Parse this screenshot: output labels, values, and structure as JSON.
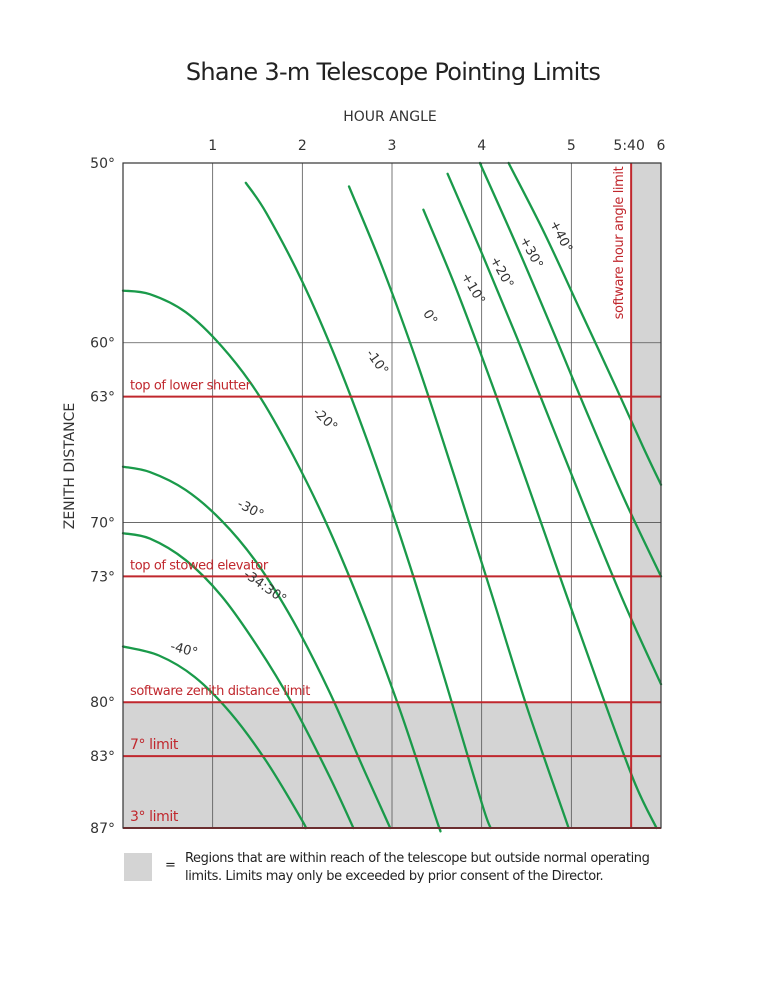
{
  "chart_data": {
    "type": "line",
    "title": "Shane 3-m Telescope Pointing Limits",
    "xlabel": "HOUR ANGLE",
    "ylabel": "ZENITH DISTANCE",
    "xlim": [
      0,
      6
    ],
    "ylim": [
      50,
      87
    ],
    "y_reversed": true,
    "grid": true,
    "x_ticks": [
      {
        "value": 1,
        "label": "1"
      },
      {
        "value": 2,
        "label": "2"
      },
      {
        "value": 3,
        "label": "3"
      },
      {
        "value": 4,
        "label": "4"
      },
      {
        "value": 5,
        "label": "5"
      },
      {
        "value": 5.667,
        "label": "5:40"
      },
      {
        "value": 6,
        "label": "6"
      }
    ],
    "y_ticks": [
      {
        "value": 50,
        "label": "50°",
        "grid": false
      },
      {
        "value": 60,
        "label": "60°",
        "grid": true
      },
      {
        "value": 63,
        "label": "63°",
        "grid": false
      },
      {
        "value": 70,
        "label": "70°",
        "grid": true
      },
      {
        "value": 73,
        "label": "73°",
        "grid": false
      },
      {
        "value": 80,
        "label": "80°",
        "grid": false
      },
      {
        "value": 83,
        "label": "83°",
        "grid": false
      },
      {
        "value": 87,
        "label": "87°",
        "grid": false
      }
    ],
    "series": [
      {
        "name": "+40°",
        "label_at": [
          4.88,
          54.1
        ],
        "label_angle": 63,
        "points": [
          [
            4.3,
            50
          ],
          [
            4.7,
            53.9
          ],
          [
            5.1,
            58.2
          ],
          [
            5.5,
            62.5
          ],
          [
            5.8,
            65.8
          ],
          [
            6.0,
            67.9
          ]
        ]
      },
      {
        "name": "+30°",
        "label_at": [
          4.55,
          55.0
        ],
        "label_angle": 62,
        "points": [
          [
            3.98,
            50
          ],
          [
            4.4,
            54.7
          ],
          [
            4.8,
            59.4
          ],
          [
            5.2,
            64.2
          ],
          [
            5.6,
            68.8
          ],
          [
            6.0,
            73.0
          ]
        ]
      },
      {
        "name": "+20°",
        "label_at": [
          4.22,
          56.1
        ],
        "label_angle": 61,
        "points": [
          [
            3.62,
            50.6
          ],
          [
            4.0,
            55.0
          ],
          [
            4.4,
            59.8
          ],
          [
            4.8,
            64.8
          ],
          [
            5.2,
            69.8
          ],
          [
            5.6,
            74.6
          ],
          [
            6.0,
            79.0
          ]
        ]
      },
      {
        "name": "+10°",
        "label_at": [
          3.9,
          57.0
        ],
        "label_angle": 60,
        "points": [
          [
            3.35,
            52.6
          ],
          [
            3.7,
            56.8
          ],
          [
            4.1,
            62.1
          ],
          [
            4.5,
            67.7
          ],
          [
            4.9,
            73.4
          ],
          [
            5.3,
            79.0
          ],
          [
            5.7,
            84.4
          ],
          [
            5.95,
            87.0
          ]
        ]
      },
      {
        "name": "0°",
        "label_at": [
          3.42,
          58.6
        ],
        "label_angle": 58,
        "points": [
          [
            2.52,
            51.3
          ],
          [
            2.9,
            55.9
          ],
          [
            3.3,
            61.4
          ],
          [
            3.7,
            67.5
          ],
          [
            4.1,
            73.8
          ],
          [
            4.5,
            80.2
          ],
          [
            4.9,
            86.0
          ],
          [
            4.97,
            87.0
          ]
        ]
      },
      {
        "name": "-10°",
        "label_at": [
          2.83,
          61.1
        ],
        "label_angle": 54,
        "points": [
          [
            1.37,
            51.1
          ],
          [
            1.6,
            52.8
          ],
          [
            2.0,
            56.6
          ],
          [
            2.4,
            61.2
          ],
          [
            2.8,
            66.5
          ],
          [
            3.2,
            72.4
          ],
          [
            3.6,
            78.9
          ],
          [
            4.0,
            85.6
          ],
          [
            4.1,
            87.0
          ]
        ]
      },
      {
        "name": "-20°",
        "label_at": [
          2.25,
          64.3
        ],
        "label_angle": 43,
        "points": [
          [
            0,
            57.1
          ],
          [
            0.3,
            57.3
          ],
          [
            0.7,
            58.3
          ],
          [
            1.1,
            60.2
          ],
          [
            1.5,
            62.8
          ],
          [
            1.9,
            66.3
          ],
          [
            2.3,
            70.4
          ],
          [
            2.7,
            75.2
          ],
          [
            3.1,
            80.6
          ],
          [
            3.5,
            86.6
          ],
          [
            3.53,
            87.0
          ]
        ]
      },
      {
        "name": "-30°",
        "label_at": [
          1.42,
          69.3
        ],
        "label_angle": 28,
        "points": [
          [
            0,
            66.9
          ],
          [
            0.3,
            67.2
          ],
          [
            0.7,
            68.2
          ],
          [
            1.1,
            69.9
          ],
          [
            1.5,
            72.3
          ],
          [
            1.9,
            75.5
          ],
          [
            2.3,
            79.4
          ],
          [
            2.7,
            83.9
          ],
          [
            2.98,
            87.0
          ]
        ]
      },
      {
        "name": "-34:30°",
        "label_at": [
          1.58,
          73.6
        ],
        "label_angle": 35,
        "points": [
          [
            0,
            70.6
          ],
          [
            0.3,
            70.9
          ],
          [
            0.7,
            72.1
          ],
          [
            1.1,
            74.1
          ],
          [
            1.5,
            76.9
          ],
          [
            1.9,
            80.2
          ],
          [
            2.3,
            84.1
          ],
          [
            2.57,
            87.0
          ]
        ]
      },
      {
        "name": "-40°",
        "label_at": [
          0.68,
          77.1
        ],
        "label_angle": 15,
        "points": [
          [
            0,
            76.9
          ],
          [
            0.4,
            77.4
          ],
          [
            0.8,
            78.6
          ],
          [
            1.2,
            80.6
          ],
          [
            1.6,
            83.3
          ],
          [
            2.0,
            86.6
          ],
          [
            2.03,
            87.0
          ]
        ]
      }
    ],
    "limit_lines": {
      "horizontal": [
        {
          "label": "top of lower shutter",
          "value": 63
        },
        {
          "label": "top of stowed elevator",
          "value": 73
        },
        {
          "label": "software zenith distance limit",
          "value": 80
        },
        {
          "label": "7° limit",
          "value": 83
        },
        {
          "label": "3° limit",
          "value": 87
        }
      ],
      "vertical": [
        {
          "label": "software hour angle limit",
          "value": 5.667
        }
      ]
    },
    "shaded_regions": [
      {
        "x": [
          0,
          6
        ],
        "y": [
          80,
          87
        ]
      },
      {
        "x": [
          5.667,
          6
        ],
        "y": [
          50,
          87
        ]
      }
    ],
    "legend": {
      "symbol": "=",
      "lines": [
        "Regions that are within reach of the telescope but outside normal operating",
        "limits. Limits may only be exceeded by prior consent of the Director."
      ]
    }
  },
  "colors": {
    "curve": "#1a9a4a",
    "limit": "#c0272d",
    "shade": "#d4d4d4",
    "grid": "#555555",
    "text": "#222222"
  }
}
